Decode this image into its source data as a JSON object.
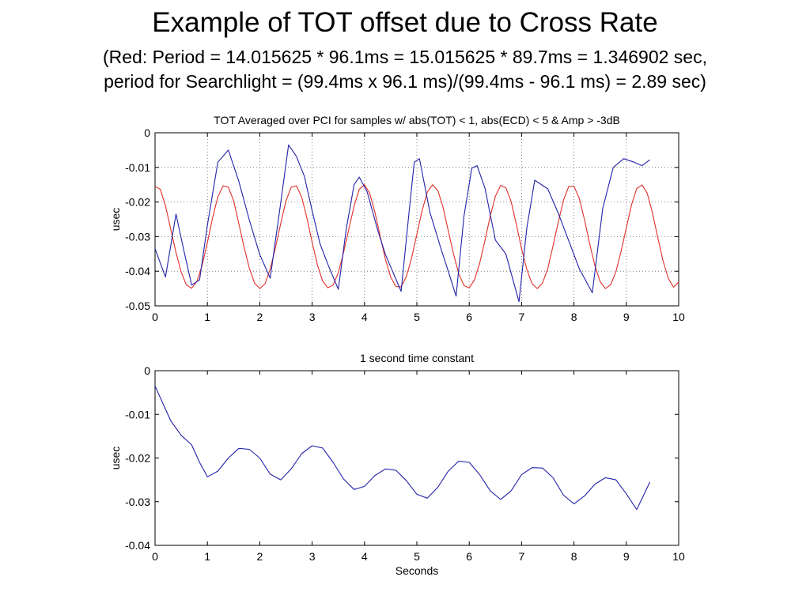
{
  "page": {
    "title": "Example of TOT offset due to Cross Rate",
    "subtitle_line1": "(Red: Period = 14.015625 * 96.1ms = 15.015625 * 89.7ms = 1.346902 sec,",
    "subtitle_line2": "period for Searchlight = (99.4ms x 96.1 ms)/(99.4ms - 96.1 ms) = 2.89 sec)"
  },
  "colors": {
    "red_series": "#e0302a",
    "blue_series": "#2222aa",
    "grid": "#666666"
  },
  "chart_data": [
    {
      "type": "line",
      "title": "TOT Averaged over PCI for samples w/ abs(TOT) < 1, abs(ECD) < 5 & Amp > -3dB",
      "xlabel": "",
      "ylabel": "usec",
      "xlim": [
        0,
        10
      ],
      "ylim": [
        -0.05,
        0
      ],
      "xticks": [
        0,
        1,
        2,
        3,
        4,
        5,
        6,
        7,
        8,
        9,
        10
      ],
      "yticks": [
        0,
        -0.01,
        -0.02,
        -0.03,
        -0.04,
        -0.05
      ],
      "grid": true,
      "series": [
        {
          "color": "red",
          "x": [
            0,
            0.1,
            0.2,
            0.3,
            0.4,
            0.5,
            0.6,
            0.7,
            0.8,
            0.9,
            1,
            1.1,
            1.2,
            1.3,
            1.4,
            1.5,
            1.6,
            1.7,
            1.8,
            1.9,
            2,
            2.1,
            2.2,
            2.3,
            2.4,
            2.5,
            2.6,
            2.7,
            2.8,
            2.9,
            3,
            3.1,
            3.2,
            3.3,
            3.4,
            3.5,
            3.6,
            3.7,
            3.8,
            3.9,
            4,
            4.1,
            4.2,
            4.3,
            4.4,
            4.5,
            4.6,
            4.7,
            4.8,
            4.9,
            5,
            5.1,
            5.2,
            5.3,
            5.4,
            5.5,
            5.6,
            5.7,
            5.8,
            5.9,
            6,
            6.1,
            6.2,
            6.3,
            6.4,
            6.5,
            6.6,
            6.7,
            6.8,
            6.9,
            7,
            7.1,
            7.2,
            7.3,
            7.4,
            7.5,
            7.6,
            7.7,
            7.8,
            7.9,
            8,
            8.1,
            8.2,
            8.3,
            8.4,
            8.5,
            8.6,
            8.7,
            8.8,
            8.9,
            9,
            9.1,
            9.2,
            9.3,
            9.4,
            9.5,
            9.6,
            9.7,
            9.8,
            9.9,
            10
          ],
          "values": [
            -0.0155,
            -0.0163,
            -0.0211,
            -0.0279,
            -0.0346,
            -0.0403,
            -0.044,
            -0.0449,
            -0.0429,
            -0.0382,
            -0.0317,
            -0.0245,
            -0.0185,
            -0.0153,
            -0.0157,
            -0.0196,
            -0.0262,
            -0.033,
            -0.0391,
            -0.0434,
            -0.045,
            -0.0436,
            -0.0394,
            -0.0331,
            -0.0262,
            -0.0197,
            -0.0157,
            -0.0153,
            -0.0186,
            -0.0246,
            -0.0316,
            -0.0381,
            -0.0428,
            -0.0448,
            -0.044,
            -0.0404,
            -0.0346,
            -0.0279,
            -0.0212,
            -0.0163,
            -0.015,
            -0.0175,
            -0.023,
            -0.0299,
            -0.0366,
            -0.0417,
            -0.0444,
            -0.0445,
            -0.0415,
            -0.0361,
            -0.0293,
            -0.0225,
            -0.0171,
            -0.015,
            -0.0167,
            -0.0215,
            -0.0283,
            -0.035,
            -0.0407,
            -0.0441,
            -0.0448,
            -0.0425,
            -0.0377,
            -0.0311,
            -0.0241,
            -0.0183,
            -0.0152,
            -0.0159,
            -0.0199,
            -0.0265,
            -0.0335,
            -0.0394,
            -0.0436,
            -0.045,
            -0.0434,
            -0.0392,
            -0.0327,
            -0.0259,
            -0.0194,
            -0.0155,
            -0.0154,
            -0.0189,
            -0.025,
            -0.0321,
            -0.0384,
            -0.043,
            -0.045,
            -0.0439,
            -0.0402,
            -0.0342,
            -0.0275,
            -0.0208,
            -0.0161,
            -0.0151,
            -0.0175,
            -0.0232,
            -0.0302,
            -0.0369,
            -0.042,
            -0.0446,
            -0.0431
          ]
        },
        {
          "color": "blue",
          "x": [
            0,
            0.2,
            0.4,
            0.55,
            0.7,
            0.85,
            1,
            1.2,
            1.4,
            1.6,
            1.8,
            2.0,
            2.2,
            2.4,
            2.55,
            2.7,
            2.85,
            3.0,
            3.15,
            3.3,
            3.5,
            3.65,
            3.8,
            3.9,
            4.05,
            4.25,
            4.4,
            4.55,
            4.7,
            4.85,
            4.95,
            5.05,
            5.25,
            5.45,
            5.6,
            5.75,
            5.9,
            6.05,
            6.15,
            6.3,
            6.5,
            6.7,
            6.95,
            7.1,
            7.25,
            7.5,
            7.7,
            7.9,
            8.1,
            8.35,
            8.55,
            8.75,
            8.95,
            9.15,
            9.3,
            9.45
          ],
          "values": [
            -0.0335,
            -0.0417,
            -0.0235,
            -0.034,
            -0.044,
            -0.0425,
            -0.0267,
            -0.0085,
            -0.005,
            -0.014,
            -0.0252,
            -0.0352,
            -0.042,
            -0.0202,
            -0.0035,
            -0.0068,
            -0.0125,
            -0.0225,
            -0.032,
            -0.038,
            -0.0452,
            -0.028,
            -0.015,
            -0.0128,
            -0.017,
            -0.028,
            -0.0352,
            -0.0405,
            -0.0458,
            -0.023,
            -0.0085,
            -0.0075,
            -0.023,
            -0.033,
            -0.04,
            -0.0472,
            -0.024,
            -0.0102,
            -0.0095,
            -0.016,
            -0.031,
            -0.035,
            -0.0488,
            -0.0275,
            -0.0137,
            -0.0162,
            -0.0232,
            -0.0312,
            -0.0392,
            -0.0462,
            -0.0218,
            -0.01,
            -0.0075,
            -0.0085,
            -0.0095,
            -0.0078
          ]
        }
      ]
    },
    {
      "type": "line",
      "title": "1 second time constant",
      "xlabel": "Seconds",
      "ylabel": "usec",
      "xlim": [
        0,
        10
      ],
      "ylim": [
        -0.04,
        0
      ],
      "xticks": [
        0,
        1,
        2,
        3,
        4,
        5,
        6,
        7,
        8,
        9,
        10
      ],
      "yticks": [
        0,
        -0.01,
        -0.02,
        -0.03,
        -0.04
      ],
      "grid": false,
      "series": [
        {
          "color": "blue",
          "x": [
            0,
            0.15,
            0.3,
            0.5,
            0.7,
            0.85,
            1.0,
            1.2,
            1.4,
            1.6,
            1.8,
            2.0,
            2.2,
            2.4,
            2.6,
            2.8,
            3.0,
            3.2,
            3.4,
            3.6,
            3.8,
            4.0,
            4.2,
            4.4,
            4.6,
            4.8,
            5.0,
            5.2,
            5.4,
            5.6,
            5.8,
            6.0,
            6.2,
            6.4,
            6.6,
            6.8,
            7.0,
            7.2,
            7.4,
            7.6,
            7.8,
            8.0,
            8.2,
            8.4,
            8.6,
            8.8,
            9.0,
            9.2,
            9.45
          ],
          "values": [
            -0.0035,
            -0.0075,
            -0.0115,
            -0.0148,
            -0.017,
            -0.021,
            -0.0243,
            -0.023,
            -0.02,
            -0.0178,
            -0.018,
            -0.02,
            -0.0237,
            -0.025,
            -0.0225,
            -0.019,
            -0.0172,
            -0.0177,
            -0.021,
            -0.0248,
            -0.0272,
            -0.0265,
            -0.024,
            -0.0225,
            -0.0228,
            -0.0252,
            -0.0283,
            -0.0292,
            -0.0267,
            -0.023,
            -0.0207,
            -0.021,
            -0.0238,
            -0.0275,
            -0.0295,
            -0.0275,
            -0.0238,
            -0.0222,
            -0.0223,
            -0.0245,
            -0.0285,
            -0.0305,
            -0.0287,
            -0.026,
            -0.0245,
            -0.025,
            -0.0282,
            -0.0318,
            -0.0255
          ]
        }
      ]
    }
  ]
}
